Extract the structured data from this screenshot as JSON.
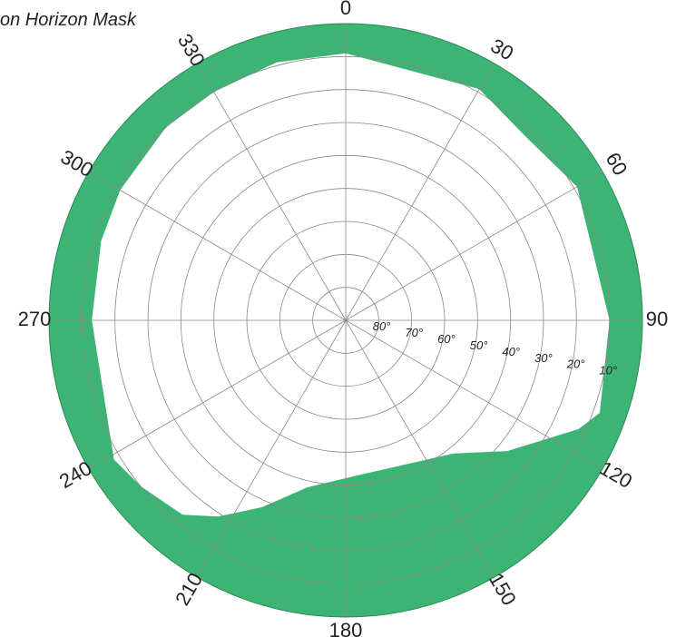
{
  "chart_data": {
    "type": "polar",
    "title": "on Horizon Mask",
    "color": "#3cb474",
    "grid": true,
    "elevation_lim": [
      90,
      0
    ],
    "elevation_ticks": [
      {
        "value": 80,
        "label": "80°"
      },
      {
        "value": 70,
        "label": "70°"
      },
      {
        "value": 60,
        "label": "60°"
      },
      {
        "value": 50,
        "label": "50°"
      },
      {
        "value": 40,
        "label": "40°"
      },
      {
        "value": 30,
        "label": "30°"
      },
      {
        "value": 20,
        "label": "20°"
      },
      {
        "value": 10,
        "label": "10°"
      }
    ],
    "elevation_label_azimuth": 101,
    "azimuth_ticks": [
      0,
      30,
      60,
      90,
      120,
      150,
      180,
      210,
      240,
      270,
      300,
      330
    ],
    "azimuth": [
      0,
      30,
      45,
      60,
      90,
      110,
      115,
      129,
      141,
      174,
      193,
      204,
      213,
      220,
      231,
      239,
      270,
      288,
      300,
      317,
      330,
      345
    ],
    "elevation": [
      9,
      9,
      12,
      9,
      10,
      8,
      12,
      27,
      38,
      43,
      38,
      28,
      19,
      13,
      10,
      8,
      13,
      12,
      11,
      10,
      10,
      9
    ]
  }
}
